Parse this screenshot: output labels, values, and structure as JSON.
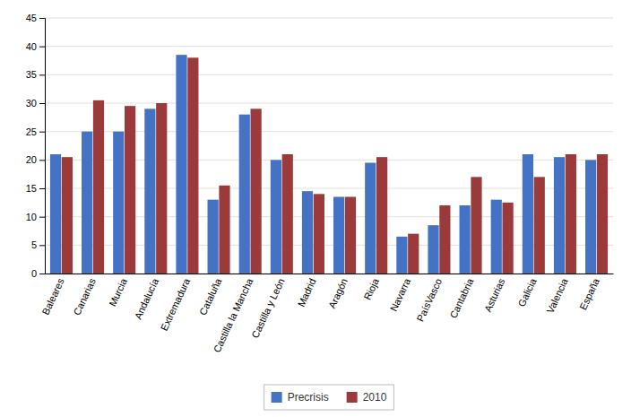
{
  "chart_data": {
    "type": "bar",
    "categories": [
      "Baleares",
      "Canarias",
      "Murcia",
      "Andalucía",
      "Extremadura",
      "Cataluña",
      "Castilla la Mancha",
      "Castilla y León",
      "Madrid",
      "Aragón",
      "Rioja",
      "Navarra",
      "PaísVasco",
      "Cantabria",
      "Asturias",
      "Galicia",
      "Valencia",
      "España"
    ],
    "series": [
      {
        "name": "Precrisis",
        "color": "#4472C4",
        "values": [
          21,
          25,
          25,
          29,
          38.5,
          13,
          28,
          20,
          14.5,
          13.5,
          19.5,
          6.5,
          8.5,
          12,
          13,
          21,
          20.5,
          20
        ]
      },
      {
        "name": "2010",
        "color": "#9B3A3A",
        "values": [
          20.5,
          30.5,
          29.5,
          30,
          38,
          15.5,
          29,
          21,
          14,
          13.5,
          20.5,
          7,
          12,
          17,
          12.5,
          17,
          21,
          21
        ]
      }
    ],
    "ylim": [
      0,
      45
    ],
    "yticks": [
      0,
      5,
      10,
      15,
      20,
      25,
      30,
      35,
      40,
      45
    ],
    "grid": true,
    "legend": "bottom"
  }
}
